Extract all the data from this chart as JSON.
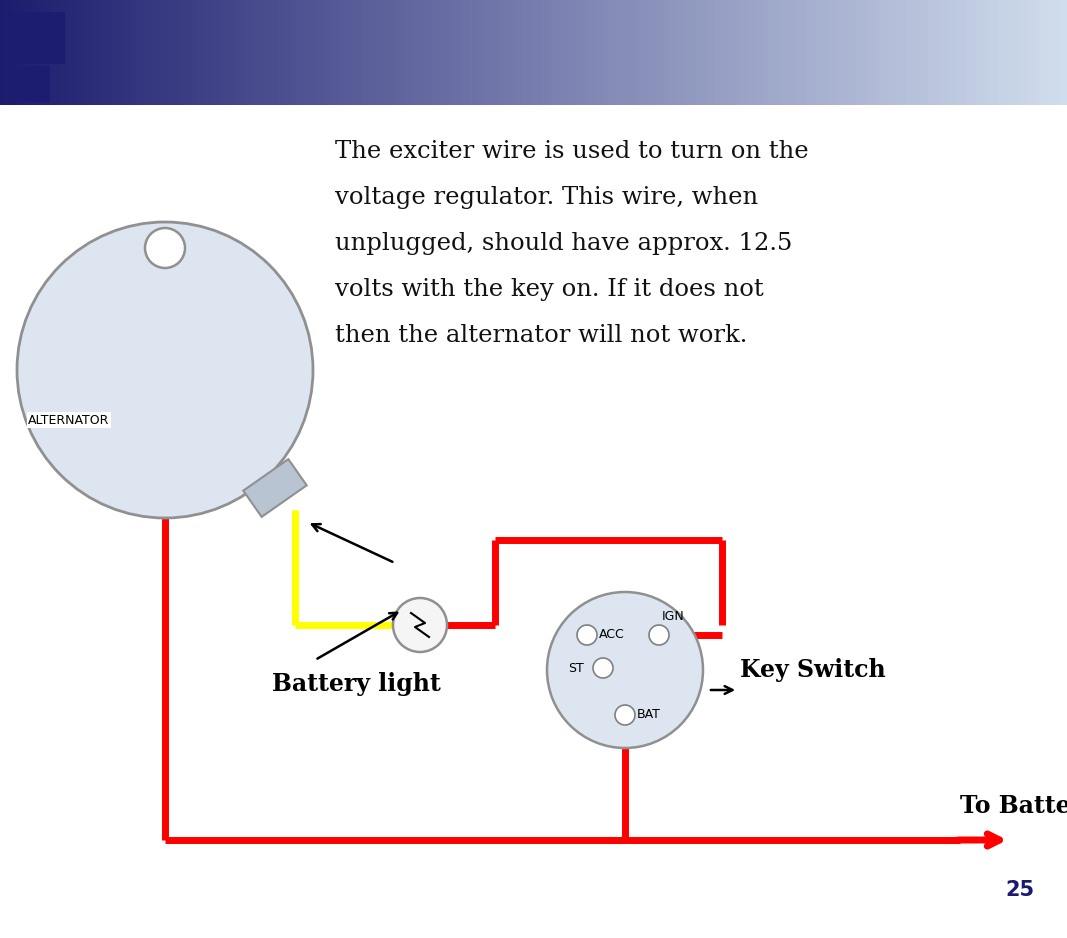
{
  "bg_color": "#ffffff",
  "wire_red": "#ff0000",
  "wire_yellow": "#ffff00",
  "component_fill": "#dde5f0",
  "component_edge": "#909090",
  "connector_fill": "#b8c4d2",
  "header_c1": [
    0.11,
    0.11,
    0.43
  ],
  "header_c2": [
    0.82,
    0.87,
    0.93
  ],
  "label_alternator": "ALTERNATOR",
  "label_battery_light": "Battery light",
  "label_key_switch": "Key Switch",
  "label_to_battery": "To Battery",
  "label_acc": "ACC",
  "label_ign": "IGN",
  "label_st": "ST",
  "label_bat": "BAT",
  "page_number": "25",
  "wire_lw": 5,
  "title_lines": [
    "The exciter wire is used to turn on the",
    "voltage regulator. This wire, when",
    "unplugged, should have approx. 12.5",
    "volts with the key on. If it does not",
    "then the alternator will not work."
  ]
}
